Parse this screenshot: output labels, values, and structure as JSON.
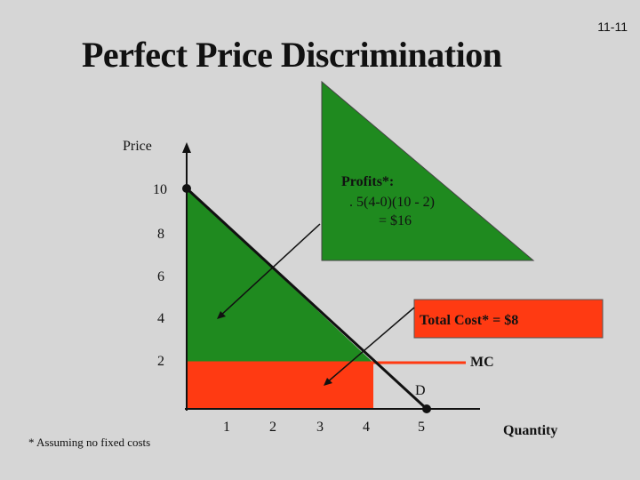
{
  "slide_number": "11-11",
  "title": "Perfect Price Discrimination",
  "axes": {
    "y_label": "Price",
    "x_label": "Quantity",
    "y_ticks": [
      "10",
      "8",
      "6",
      "4",
      "2"
    ],
    "x_ticks": [
      "1",
      "2",
      "3",
      "4",
      "5"
    ]
  },
  "callouts": {
    "profits_title": "Profits*:",
    "profits_formula": ". 5(4-0)(10 - 2)",
    "profits_result": "= $16",
    "total_cost": "Total Cost* = $8"
  },
  "curve_labels": {
    "mc": "MC",
    "demand": "D"
  },
  "footnote": "* Assuming no fixed costs",
  "colors": {
    "background": "#d6d6d6",
    "profit_area": "#1f8a1f",
    "cost_area": "#ff3a12",
    "demand_line": "#111111"
  }
}
